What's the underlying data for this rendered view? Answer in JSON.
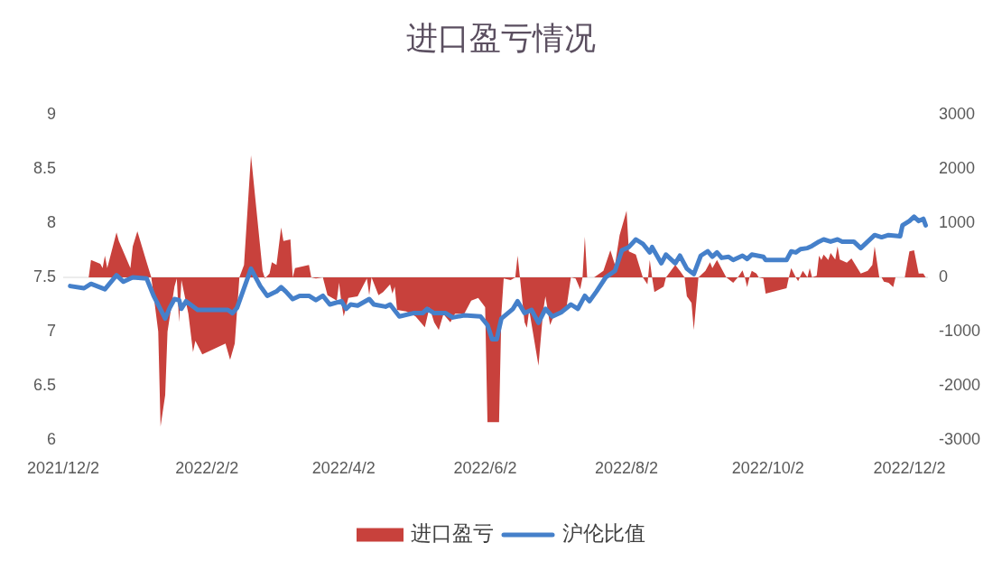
{
  "chart_data": {
    "type": "line",
    "title": "进口盈亏情况",
    "xlim": [
      "2021-12-02",
      "2022-12-10"
    ],
    "xticks": [
      {
        "value": "2021-12-02",
        "label": "2021/12/2"
      },
      {
        "value": "2022-02-02",
        "label": "2022/2/2"
      },
      {
        "value": "2022-04-02",
        "label": "2022/4/2"
      },
      {
        "value": "2022-06-02",
        "label": "2022/6/2"
      },
      {
        "value": "2022-08-02",
        "label": "2022/8/2"
      },
      {
        "value": "2022-10-02",
        "label": "2022/10/2"
      },
      {
        "value": "2022-12-02",
        "label": "2022/12/2"
      }
    ],
    "ylim": [
      6,
      9
    ],
    "yticks": [
      6,
      6.5,
      7,
      7.5,
      8,
      8.5,
      9
    ],
    "y2lim": [
      -3000,
      3000
    ],
    "y2ticks": [
      -3000,
      -2000,
      -1000,
      0,
      1000,
      2000,
      3000
    ],
    "legend": "bottom",
    "series": [
      {
        "name": "进口盈亏",
        "type": "area",
        "axis": "y2",
        "color": "#c8413c",
        "x": [
          "2021-12-05",
          "2021-12-13",
          "2021-12-14",
          "2021-12-18",
          "2021-12-19",
          "2021-12-20",
          "2021-12-21",
          "2021-12-25",
          "2021-12-26",
          "2021-12-31",
          "2022-01-01",
          "2022-01-03",
          "2022-01-07",
          "2022-01-09",
          "2022-01-10",
          "2022-01-12",
          "2022-01-13",
          "2022-01-15",
          "2022-01-16",
          "2022-01-19",
          "2022-01-20",
          "2022-01-21",
          "2022-01-22",
          "2022-01-25",
          "2022-01-27",
          "2022-01-28",
          "2022-01-31",
          "2022-02-10",
          "2022-02-12",
          "2022-02-14",
          "2022-02-16",
          "2022-02-18",
          "2022-02-21",
          "2022-02-26",
          "2022-02-27",
          "2022-03-01",
          "2022-03-02",
          "2022-03-04",
          "2022-03-06",
          "2022-03-07",
          "2022-03-10",
          "2022-03-11",
          "2022-03-12",
          "2022-03-18",
          "2022-03-19",
          "2022-03-21",
          "2022-03-24",
          "2022-03-26",
          "2022-03-30",
          "2022-03-31",
          "2022-04-01",
          "2022-04-02",
          "2022-04-04",
          "2022-04-08",
          "2022-04-12",
          "2022-04-13",
          "2022-04-14",
          "2022-04-17",
          "2022-04-19",
          "2022-04-22",
          "2022-04-23",
          "2022-04-24",
          "2022-04-25",
          "2022-04-29",
          "2022-05-03",
          "2022-05-07",
          "2022-05-09",
          "2022-05-11",
          "2022-05-13",
          "2022-05-15",
          "2022-05-18",
          "2022-05-20",
          "2022-05-24",
          "2022-05-27",
          "2022-05-30",
          "2022-06-02",
          "2022-06-03",
          "2022-06-08",
          "2022-06-09",
          "2022-06-10",
          "2022-06-13",
          "2022-06-15",
          "2022-06-16",
          "2022-06-17",
          "2022-06-19",
          "2022-06-20",
          "2022-06-21",
          "2022-06-25",
          "2022-06-27",
          "2022-06-28",
          "2022-06-30",
          "2022-07-02",
          "2022-07-07",
          "2022-07-09",
          "2022-07-11",
          "2022-07-13",
          "2022-07-14",
          "2022-07-15",
          "2022-07-16",
          "2022-07-19",
          "2022-07-23",
          "2022-07-26",
          "2022-07-28",
          "2022-07-30",
          "2022-08-02",
          "2022-08-03",
          "2022-08-06",
          "2022-08-09",
          "2022-08-11",
          "2022-08-12",
          "2022-08-13",
          "2022-08-14",
          "2022-08-18",
          "2022-08-19",
          "2022-08-23",
          "2022-08-25",
          "2022-08-27",
          "2022-08-28",
          "2022-08-30",
          "2022-08-31",
          "2022-09-02",
          "2022-09-05",
          "2022-09-07",
          "2022-09-08",
          "2022-09-10",
          "2022-09-14",
          "2022-09-17",
          "2022-09-19",
          "2022-09-21",
          "2022-09-22",
          "2022-09-23",
          "2022-09-24",
          "2022-09-25",
          "2022-09-27",
          "2022-09-28",
          "2022-09-30",
          "2022-10-01",
          "2022-10-10",
          "2022-10-11",
          "2022-10-12",
          "2022-10-14",
          "2022-10-15",
          "2022-10-16",
          "2022-10-17",
          "2022-10-19",
          "2022-10-20",
          "2022-10-21",
          "2022-10-23",
          "2022-10-24",
          "2022-10-25",
          "2022-10-26",
          "2022-10-28",
          "2022-10-29",
          "2022-10-31",
          "2022-11-01",
          "2022-11-02",
          "2022-11-05",
          "2022-11-07",
          "2022-11-11",
          "2022-11-14",
          "2022-11-16",
          "2022-11-17",
          "2022-11-19",
          "2022-11-20",
          "2022-11-21",
          "2022-11-23",
          "2022-11-25",
          "2022-11-26",
          "2022-11-30",
          "2022-12-02",
          "2022-12-04",
          "2022-12-06",
          "2022-12-08",
          "2022-12-09"
        ],
        "values": [
          0,
          0,
          320,
          250,
          170,
          400,
          170,
          830,
          670,
          170,
          570,
          850,
          280,
          0,
          -330,
          -1000,
          -2750,
          -2170,
          -1000,
          -170,
          -20,
          -830,
          -50,
          -670,
          -1380,
          -1170,
          -1420,
          -1220,
          -1520,
          -1220,
          0,
          230,
          2250,
          120,
          -20,
          70,
          280,
          230,
          920,
          670,
          700,
          0,
          170,
          230,
          0,
          -20,
          0,
          -330,
          -430,
          -100,
          -470,
          -720,
          -380,
          -350,
          -20,
          -330,
          0,
          -330,
          -270,
          -130,
          -300,
          -170,
          -600,
          -630,
          -720,
          -920,
          -550,
          -830,
          -970,
          -680,
          -830,
          -670,
          -670,
          -430,
          -380,
          -550,
          -2670,
          -2670,
          -670,
          -20,
          -50,
          0,
          400,
          0,
          -830,
          -930,
          -600,
          -1630,
          -630,
          -350,
          -880,
          -670,
          -580,
          0,
          -20,
          -220,
          0,
          750,
          0,
          0,
          120,
          500,
          230,
          780,
          1230,
          480,
          420,
          0,
          -130,
          320,
          0,
          -270,
          -170,
          0,
          230,
          120,
          0,
          -350,
          -470,
          -970,
          0,
          120,
          280,
          170,
          320,
          0,
          -100,
          0,
          130,
          0,
          -180,
          0,
          120,
          70,
          0,
          -20,
          -300,
          -200,
          0,
          170,
          0,
          -70,
          30,
          120,
          0,
          170,
          0,
          30,
          400,
          320,
          420,
          320,
          450,
          330,
          570,
          330,
          270,
          350,
          70,
          120,
          230,
          570,
          0,
          0,
          -80,
          -100,
          -180,
          0,
          0,
          480,
          500,
          70,
          70,
          0
        ]
      },
      {
        "name": "沪伦比值",
        "color": "#4580ca",
        "x": [
          "2021-12-05",
          "2021-12-11",
          "2021-12-14",
          "2021-12-20",
          "2021-12-25",
          "2021-12-28",
          "2022-01-01",
          "2022-01-07",
          "2022-01-10",
          "2022-01-15",
          "2022-01-17",
          "2022-01-19",
          "2022-01-21",
          "2022-01-22",
          "2022-01-24",
          "2022-01-29",
          "2022-02-11",
          "2022-02-13",
          "2022-02-15",
          "2022-02-21",
          "2022-02-25",
          "2022-02-28",
          "2022-03-04",
          "2022-03-06",
          "2022-03-08",
          "2022-03-11",
          "2022-03-14",
          "2022-03-18",
          "2022-03-21",
          "2022-03-24",
          "2022-03-27",
          "2022-04-01",
          "2022-04-03",
          "2022-04-05",
          "2022-04-08",
          "2022-04-13",
          "2022-04-15",
          "2022-04-20",
          "2022-04-22",
          "2022-04-26",
          "2022-05-02",
          "2022-05-06",
          "2022-05-08",
          "2022-05-11",
          "2022-05-16",
          "2022-05-19",
          "2022-05-24",
          "2022-05-31",
          "2022-06-03",
          "2022-06-05",
          "2022-06-07",
          "2022-06-09",
          "2022-06-14",
          "2022-06-16",
          "2022-06-19",
          "2022-06-22",
          "2022-06-25",
          "2022-06-28",
          "2022-07-01",
          "2022-07-05",
          "2022-07-09",
          "2022-07-12",
          "2022-07-15",
          "2022-07-17",
          "2022-07-20",
          "2022-07-24",
          "2022-07-28",
          "2022-07-31",
          "2022-08-03",
          "2022-08-06",
          "2022-08-09",
          "2022-08-12",
          "2022-08-13",
          "2022-08-17",
          "2022-08-19",
          "2022-08-23",
          "2022-08-25",
          "2022-08-28",
          "2022-08-31",
          "2022-09-03",
          "2022-09-06",
          "2022-09-08",
          "2022-09-10",
          "2022-09-12",
          "2022-09-15",
          "2022-09-17",
          "2022-09-21",
          "2022-09-23",
          "2022-09-25",
          "2022-09-30",
          "2022-10-01",
          "2022-10-10",
          "2022-10-12",
          "2022-10-14",
          "2022-10-16",
          "2022-10-19",
          "2022-10-21",
          "2022-10-24",
          "2022-10-26",
          "2022-10-29",
          "2022-11-01",
          "2022-11-03",
          "2022-11-08",
          "2022-11-11",
          "2022-11-14",
          "2022-11-17",
          "2022-11-20",
          "2022-11-23",
          "2022-11-28",
          "2022-11-29",
          "2022-12-02",
          "2022-12-04",
          "2022-12-06",
          "2022-12-08",
          "2022-12-09"
        ],
        "values": [
          7.42,
          7.4,
          7.44,
          7.39,
          7.52,
          7.46,
          7.5,
          7.49,
          7.33,
          7.12,
          7.22,
          7.3,
          7.29,
          7.21,
          7.28,
          7.2,
          7.2,
          7.17,
          7.22,
          7.58,
          7.42,
          7.33,
          7.37,
          7.41,
          7.37,
          7.3,
          7.33,
          7.33,
          7.29,
          7.33,
          7.25,
          7.28,
          7.21,
          7.25,
          7.24,
          7.3,
          7.25,
          7.23,
          7.25,
          7.14,
          7.17,
          7.17,
          7.21,
          7.17,
          7.17,
          7.13,
          7.15,
          7.14,
          7.06,
          6.93,
          6.93,
          7.12,
          7.21,
          7.28,
          7.17,
          7.2,
          7.08,
          7.21,
          7.14,
          7.18,
          7.25,
          7.21,
          7.33,
          7.28,
          7.37,
          7.5,
          7.56,
          7.75,
          7.78,
          7.85,
          7.81,
          7.73,
          7.78,
          7.63,
          7.71,
          7.63,
          7.7,
          7.58,
          7.53,
          7.7,
          7.74,
          7.69,
          7.73,
          7.68,
          7.69,
          7.66,
          7.7,
          7.67,
          7.71,
          7.69,
          7.66,
          7.66,
          7.74,
          7.73,
          7.76,
          7.77,
          7.79,
          7.83,
          7.85,
          7.83,
          7.85,
          7.83,
          7.83,
          7.77,
          7.83,
          7.89,
          7.87,
          7.89,
          7.88,
          7.98,
          8.02,
          8.06,
          8.02,
          8.04,
          7.98
        ]
      }
    ]
  }
}
